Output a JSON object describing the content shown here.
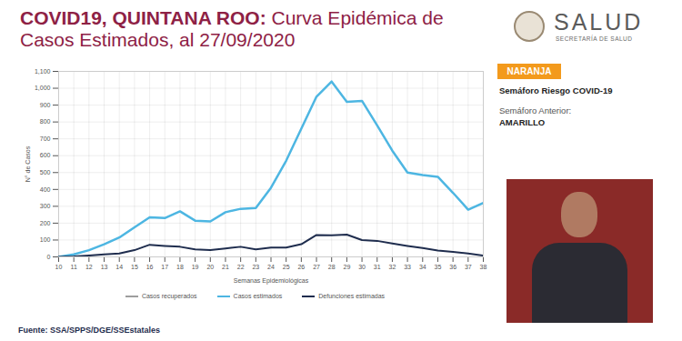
{
  "chart_data": {
    "type": "line",
    "title": "COVID19, QUINTANA ROO: Curva Epidémica de Casos Estimados, al 27/09/2020",
    "x_label": "Semanas Epidemiológicas",
    "y_label": "N° de Casos",
    "x": [
      10,
      11,
      12,
      13,
      14,
      15,
      16,
      17,
      18,
      19,
      20,
      21,
      22,
      23,
      24,
      25,
      26,
      27,
      28,
      29,
      30,
      31,
      32,
      33,
      34,
      35,
      36,
      37,
      38
    ],
    "series": [
      {
        "name": "Casos recuperados",
        "color": "#9e9e9e",
        "values": [
          null,
          null,
          null,
          null,
          null,
          null,
          null,
          null,
          null,
          null,
          null,
          null,
          null,
          null,
          null,
          null,
          null,
          null,
          null,
          null,
          null,
          null,
          null,
          null,
          null,
          null,
          null,
          null,
          null
        ]
      },
      {
        "name": "Casos estimados",
        "color": "#4db6e2",
        "values": [
          0,
          15,
          40,
          75,
          115,
          175,
          235,
          230,
          270,
          215,
          210,
          265,
          285,
          290,
          410,
          570,
          760,
          950,
          1040,
          920,
          925,
          780,
          630,
          500,
          485,
          475,
          380,
          280,
          320
        ]
      },
      {
        "name": "Defunciones estimadas",
        "color": "#1f2d4e",
        "values": [
          0,
          3,
          8,
          15,
          20,
          40,
          72,
          65,
          60,
          45,
          40,
          50,
          60,
          45,
          55,
          55,
          75,
          130,
          128,
          132,
          100,
          95,
          80,
          65,
          52,
          38,
          30,
          20,
          8
        ]
      }
    ],
    "xlim": [
      10,
      38
    ],
    "xticks": [
      10,
      11,
      12,
      13,
      14,
      15,
      16,
      17,
      18,
      19,
      20,
      21,
      22,
      23,
      24,
      25,
      26,
      27,
      28,
      29,
      30,
      31,
      32,
      33,
      34,
      35,
      36,
      37,
      38
    ],
    "ylim": [
      0,
      1100
    ],
    "yticks": [
      0,
      100,
      200,
      300,
      400,
      500,
      600,
      700,
      800,
      900,
      {
        "value": 1000,
        "label": "1,000"
      },
      {
        "value": 1100,
        "label": "1,100"
      }
    ],
    "grid": true,
    "legend": "bottom"
  },
  "logo": {
    "name": "SALUD",
    "subtitle": "SECRETARÍA DE SALUD"
  },
  "semaforo": {
    "current": "NARANJA",
    "label": "Semáforo Riesgo COVID-19",
    "previous_label": "Semáforo Anterior:",
    "previous": "AMARILLO"
  },
  "source": "Fuente: SSA/SPPS/DGE/SSEstatales"
}
